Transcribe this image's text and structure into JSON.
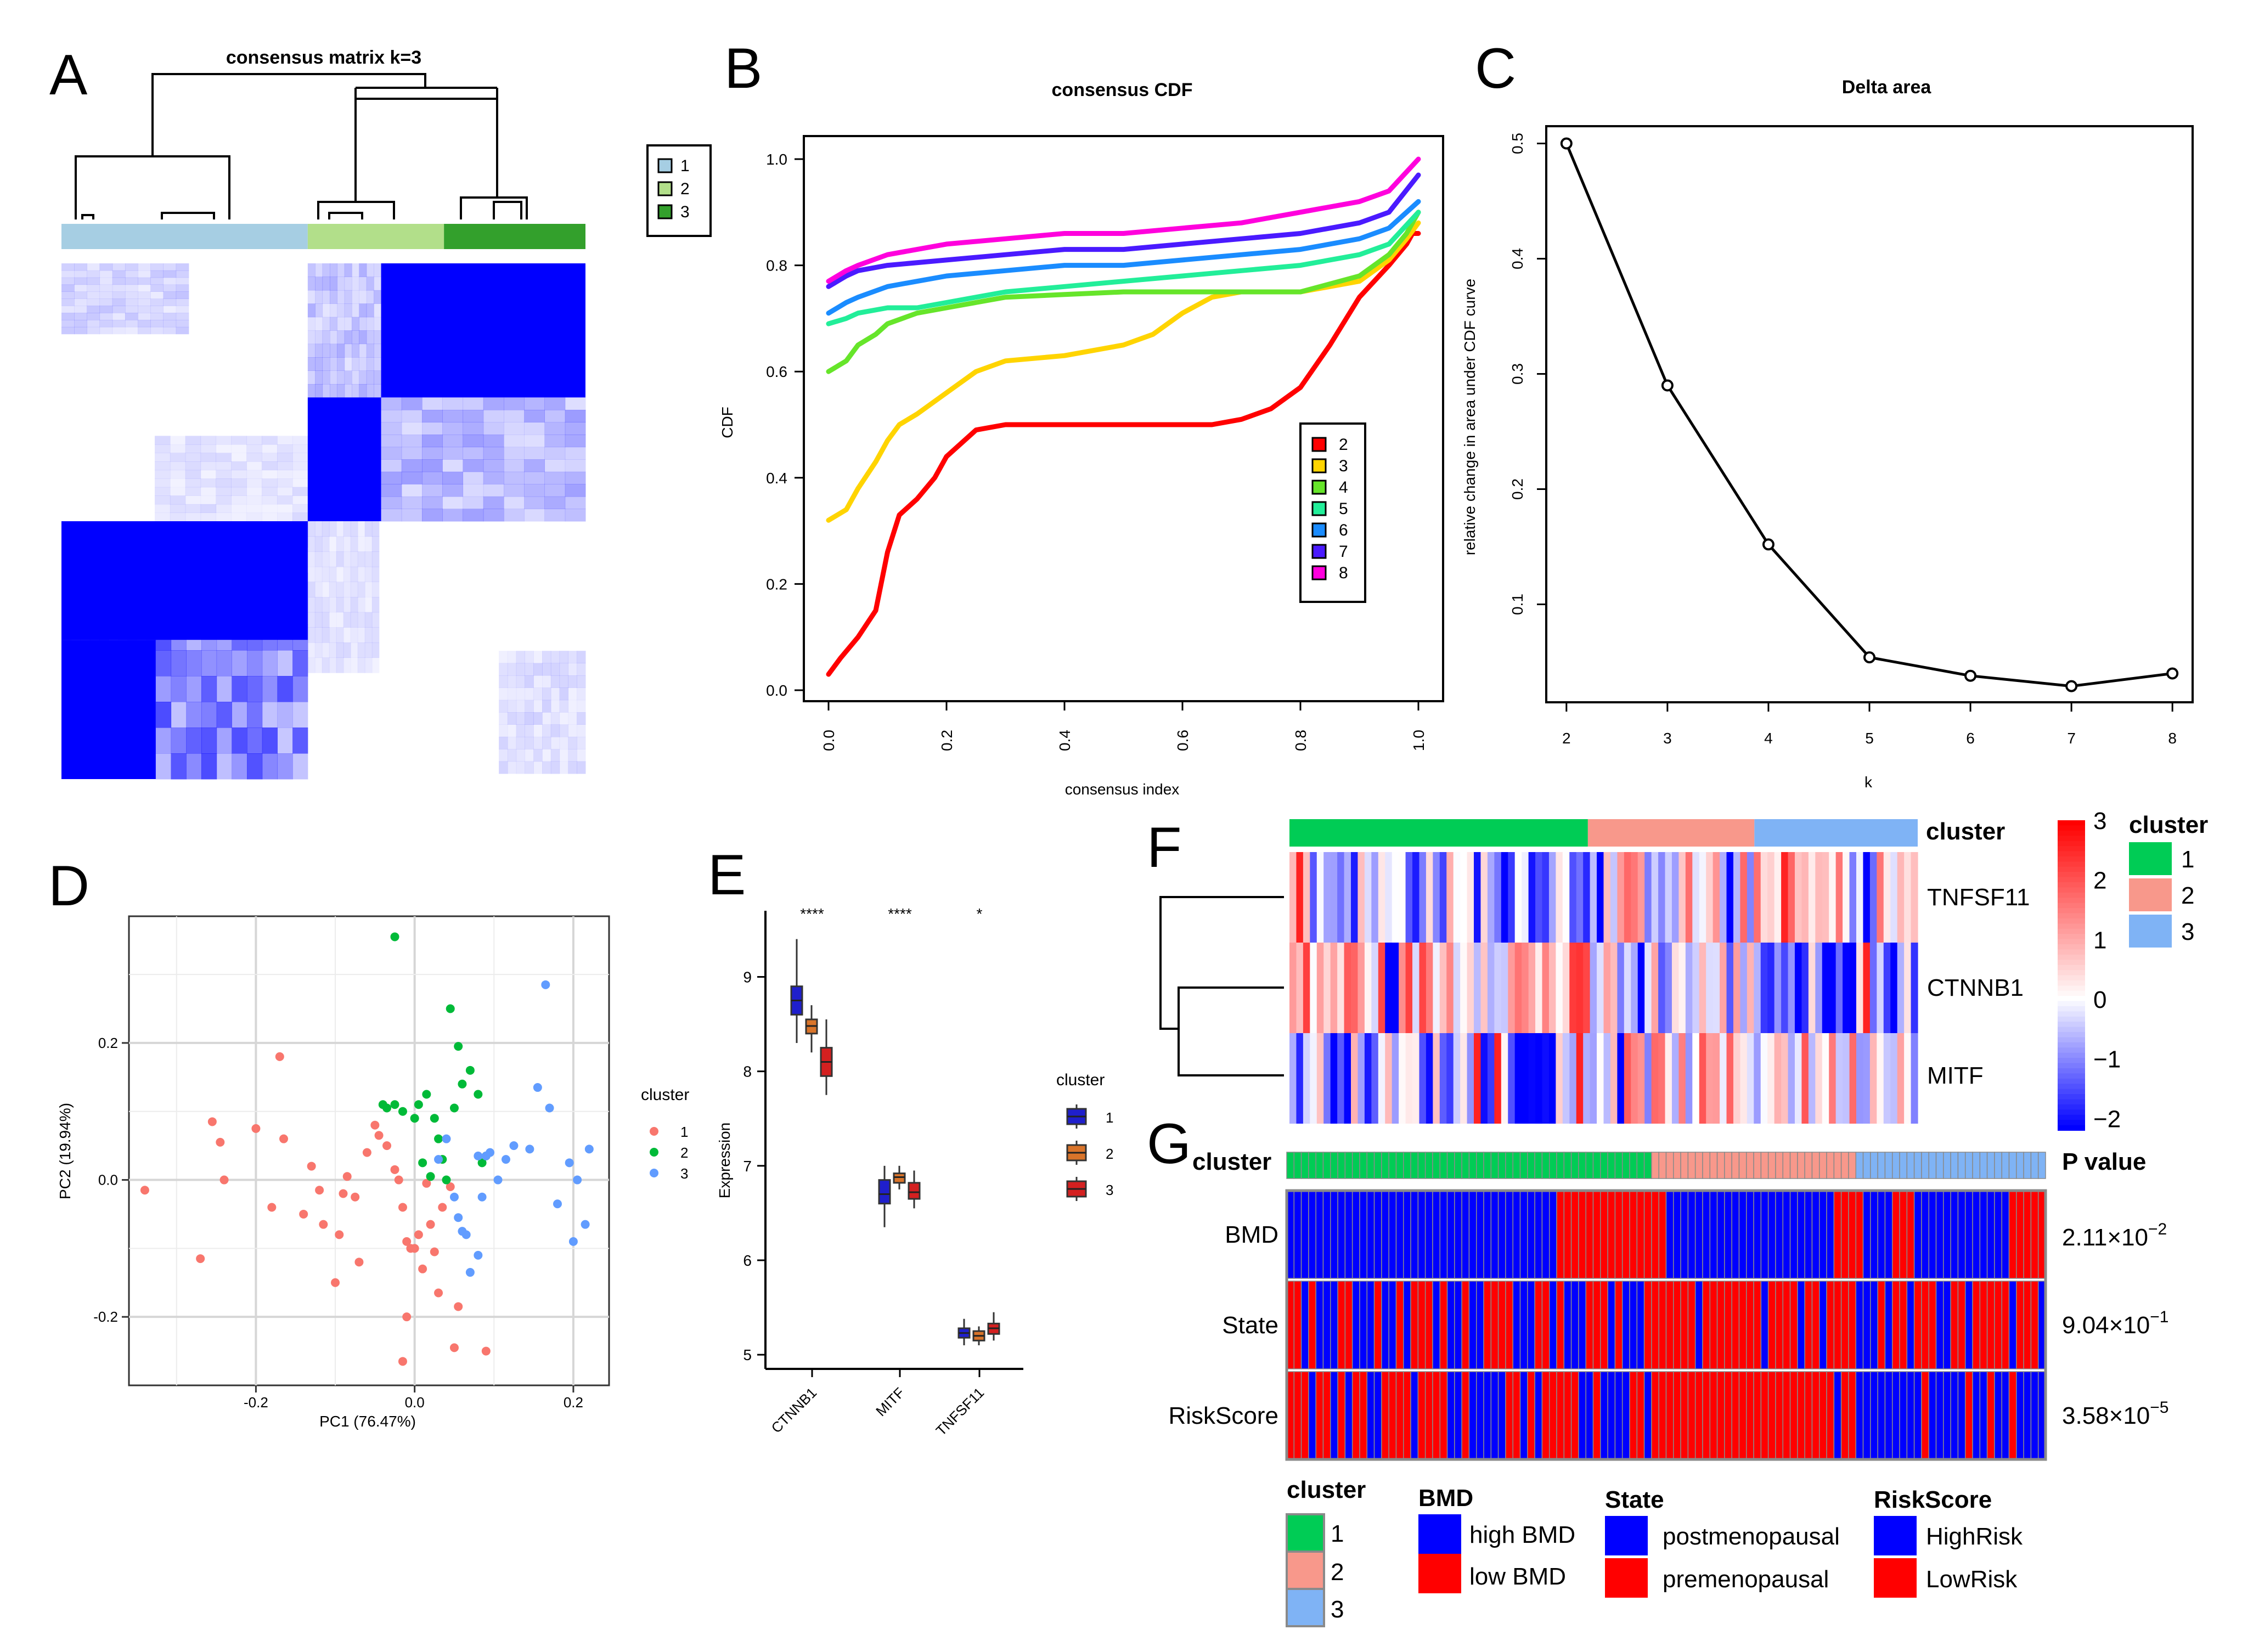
{
  "panel_letters": [
    "A",
    "B",
    "C",
    "D",
    "E",
    "F",
    "G"
  ],
  "colors": {
    "c1_light": "#a6cee3",
    "c2_light": "#b2df8a",
    "c3_light": "#33a02c",
    "cl1": "#00cc55",
    "cl2": "#f8988b",
    "cl3": "#7fb3f5",
    "blue": "#0000ff",
    "red": "#ff0000",
    "cdf": [
      "#ff0000",
      "#ffd400",
      "#66e52a",
      "#22ee99",
      "#1a8cff",
      "#4a1aff",
      "#ff00dd"
    ]
  },
  "chart_data": [
    {
      "panel": "A",
      "type": "heatmap",
      "title": "consensus matrix k=3",
      "legend": [
        "1",
        "2",
        "3"
      ],
      "groups": [
        {
          "name": "1",
          "size": 0.47
        },
        {
          "name": "2",
          "size": 0.26
        },
        {
          "name": "3",
          "size": 0.27
        }
      ]
    },
    {
      "panel": "B",
      "type": "line",
      "title": "consensus CDF",
      "xlabel": "consensus index",
      "ylabel": "CDF",
      "xlim": [
        0,
        1
      ],
      "ylim": [
        0,
        1
      ],
      "xticks": [
        "0.0",
        "0.2",
        "0.4",
        "0.6",
        "0.8",
        "1.0"
      ],
      "yticks": [
        "0.0",
        "0.2",
        "0.4",
        "0.6",
        "0.8",
        "1.0"
      ],
      "series": [
        {
          "name": "2",
          "x": [
            0,
            0.02,
            0.05,
            0.08,
            0.1,
            0.12,
            0.15,
            0.18,
            0.2,
            0.25,
            0.3,
            0.4,
            0.5,
            0.6,
            0.65,
            0.7,
            0.75,
            0.8,
            0.85,
            0.9,
            0.95,
            0.98,
            0.99,
            1.0
          ],
          "y": [
            0.03,
            0.06,
            0.1,
            0.15,
            0.26,
            0.33,
            0.36,
            0.4,
            0.44,
            0.49,
            0.5,
            0.5,
            0.5,
            0.5,
            0.5,
            0.51,
            0.53,
            0.57,
            0.65,
            0.74,
            0.8,
            0.84,
            0.86,
            0.86
          ]
        },
        {
          "name": "3",
          "x": [
            0,
            0.03,
            0.05,
            0.08,
            0.1,
            0.12,
            0.15,
            0.2,
            0.25,
            0.3,
            0.4,
            0.5,
            0.55,
            0.6,
            0.65,
            0.7,
            0.8,
            0.9,
            0.95,
            0.98,
            1.0
          ],
          "y": [
            0.32,
            0.34,
            0.38,
            0.43,
            0.47,
            0.5,
            0.52,
            0.56,
            0.6,
            0.62,
            0.63,
            0.65,
            0.67,
            0.71,
            0.74,
            0.75,
            0.75,
            0.77,
            0.81,
            0.85,
            0.88
          ]
        },
        {
          "name": "4",
          "x": [
            0,
            0.03,
            0.05,
            0.08,
            0.1,
            0.15,
            0.2,
            0.3,
            0.4,
            0.5,
            0.6,
            0.7,
            0.8,
            0.9,
            0.95,
            0.98,
            1.0
          ],
          "y": [
            0.6,
            0.62,
            0.65,
            0.67,
            0.69,
            0.71,
            0.72,
            0.74,
            0.745,
            0.75,
            0.75,
            0.75,
            0.75,
            0.78,
            0.82,
            0.86,
            0.9
          ]
        },
        {
          "name": "5",
          "x": [
            0,
            0.03,
            0.05,
            0.1,
            0.15,
            0.2,
            0.25,
            0.3,
            0.4,
            0.5,
            0.6,
            0.7,
            0.8,
            0.9,
            0.95,
            1.0
          ],
          "y": [
            0.69,
            0.7,
            0.71,
            0.72,
            0.72,
            0.73,
            0.74,
            0.75,
            0.76,
            0.77,
            0.78,
            0.79,
            0.8,
            0.82,
            0.84,
            0.9
          ]
        },
        {
          "name": "6",
          "x": [
            0,
            0.03,
            0.05,
            0.1,
            0.2,
            0.3,
            0.4,
            0.5,
            0.6,
            0.7,
            0.8,
            0.9,
            0.95,
            1.0
          ],
          "y": [
            0.71,
            0.73,
            0.74,
            0.76,
            0.78,
            0.79,
            0.8,
            0.8,
            0.81,
            0.82,
            0.83,
            0.85,
            0.87,
            0.92
          ]
        },
        {
          "name": "7",
          "x": [
            0,
            0.03,
            0.05,
            0.1,
            0.2,
            0.3,
            0.4,
            0.5,
            0.6,
            0.7,
            0.8,
            0.9,
            0.95,
            1.0
          ],
          "y": [
            0.76,
            0.78,
            0.79,
            0.8,
            0.81,
            0.82,
            0.83,
            0.83,
            0.84,
            0.85,
            0.86,
            0.88,
            0.9,
            0.97
          ]
        },
        {
          "name": "8",
          "x": [
            0,
            0.03,
            0.05,
            0.1,
            0.2,
            0.3,
            0.4,
            0.5,
            0.6,
            0.7,
            0.8,
            0.9,
            0.95,
            1.0
          ],
          "y": [
            0.77,
            0.79,
            0.8,
            0.82,
            0.84,
            0.85,
            0.86,
            0.86,
            0.87,
            0.88,
            0.9,
            0.92,
            0.94,
            1.0
          ]
        }
      ]
    },
    {
      "panel": "C",
      "type": "line",
      "title": "Delta area",
      "xlabel": "k",
      "ylabel": "relative change in area under CDF curve",
      "x": [
        2,
        3,
        4,
        5,
        6,
        7,
        8
      ],
      "y": [
        0.5,
        0.29,
        0.152,
        0.054,
        0.038,
        0.029,
        0.04
      ],
      "xlim": [
        1.8,
        8.2
      ],
      "ylim": [
        0.015,
        0.515
      ],
      "xticks": [
        "2",
        "3",
        "4",
        "5",
        "6",
        "7",
        "8"
      ],
      "yticks": [
        "0.1",
        "0.2",
        "0.3",
        "0.4",
        "0.5"
      ]
    },
    {
      "panel": "D",
      "type": "scatter",
      "xlabel": "PC1 (76.47%)",
      "ylabel": "PC2 (19.94%)",
      "xlim": [
        -0.36,
        0.245
      ],
      "ylim": [
        -0.3,
        0.385
      ],
      "xticks": [
        "-0.2",
        "0.0",
        "0.2"
      ],
      "yticks": [
        "-0.2",
        "0.0",
        "0.2"
      ],
      "legend_title": "cluster",
      "legend": [
        "1",
        "2",
        "3"
      ],
      "series": [
        {
          "name": "1",
          "points": [
            [
              -0.34,
              -0.015
            ],
            [
              -0.27,
              -0.115
            ],
            [
              -0.255,
              0.085
            ],
            [
              -0.245,
              0.055
            ],
            [
              -0.24,
              0.0
            ],
            [
              -0.2,
              0.075
            ],
            [
              -0.18,
              -0.04
            ],
            [
              -0.17,
              0.18
            ],
            [
              -0.165,
              0.06
            ],
            [
              -0.14,
              -0.05
            ],
            [
              -0.13,
              0.02
            ],
            [
              -0.12,
              -0.015
            ],
            [
              -0.115,
              -0.065
            ],
            [
              -0.1,
              -0.15
            ],
            [
              -0.095,
              -0.08
            ],
            [
              -0.09,
              -0.02
            ],
            [
              -0.085,
              0.005
            ],
            [
              -0.075,
              -0.025
            ],
            [
              -0.07,
              -0.12
            ],
            [
              -0.06,
              0.04
            ],
            [
              -0.05,
              0.08
            ],
            [
              -0.045,
              0.065
            ],
            [
              -0.035,
              0.05
            ],
            [
              -0.025,
              0.015
            ],
            [
              -0.02,
              0.0
            ],
            [
              -0.015,
              -0.04
            ],
            [
              -0.01,
              -0.09
            ],
            [
              -0.005,
              -0.1
            ],
            [
              -0.01,
              -0.2
            ],
            [
              -0.015,
              -0.265
            ],
            [
              0.0,
              -0.1
            ],
            [
              0.005,
              -0.08
            ],
            [
              0.01,
              -0.13
            ],
            [
              0.015,
              -0.005
            ],
            [
              0.02,
              -0.065
            ],
            [
              0.025,
              -0.105
            ],
            [
              0.03,
              -0.165
            ],
            [
              0.035,
              -0.04
            ],
            [
              0.045,
              -0.01
            ],
            [
              0.05,
              -0.245
            ],
            [
              0.055,
              -0.185
            ],
            [
              0.09,
              -0.25
            ]
          ]
        },
        {
          "name": "2",
          "points": [
            [
              -0.025,
              0.355
            ],
            [
              -0.04,
              0.11
            ],
            [
              -0.035,
              0.105
            ],
            [
              -0.025,
              0.11
            ],
            [
              -0.015,
              0.1
            ],
            [
              0.0,
              0.09
            ],
            [
              0.005,
              0.11
            ],
            [
              0.01,
              0.025
            ],
            [
              0.015,
              0.125
            ],
            [
              0.02,
              0.005
            ],
            [
              0.025,
              0.09
            ],
            [
              0.03,
              0.06
            ],
            [
              0.035,
              0.03
            ],
            [
              0.04,
              0.0
            ],
            [
              0.045,
              0.25
            ],
            [
              0.05,
              0.105
            ],
            [
              0.055,
              0.195
            ],
            [
              0.06,
              0.14
            ],
            [
              0.07,
              0.16
            ],
            [
              0.08,
              0.125
            ],
            [
              0.085,
              0.025
            ],
            [
              0.09,
              0.035
            ]
          ]
        },
        {
          "name": "3",
          "points": [
            [
              0.03,
              0.03
            ],
            [
              0.04,
              0.06
            ],
            [
              0.05,
              -0.025
            ],
            [
              0.055,
              -0.055
            ],
            [
              0.06,
              -0.075
            ],
            [
              0.065,
              -0.08
            ],
            [
              0.07,
              -0.135
            ],
            [
              0.08,
              0.035
            ],
            [
              0.08,
              -0.11
            ],
            [
              0.085,
              -0.025
            ],
            [
              0.09,
              0.035
            ],
            [
              0.095,
              0.04
            ],
            [
              0.105,
              0.0
            ],
            [
              0.115,
              0.03
            ],
            [
              0.125,
              0.05
            ],
            [
              0.145,
              0.045
            ],
            [
              0.155,
              0.135
            ],
            [
              0.165,
              0.285
            ],
            [
              0.17,
              0.105
            ],
            [
              0.18,
              -0.035
            ],
            [
              0.195,
              0.025
            ],
            [
              0.2,
              -0.09
            ],
            [
              0.205,
              0.0
            ],
            [
              0.215,
              -0.065
            ],
            [
              0.22,
              0.045
            ]
          ]
        }
      ]
    },
    {
      "panel": "E",
      "type": "boxplot",
      "ylabel": "Expression",
      "categories": [
        "CTNNB1",
        "MITF",
        "TNFSF11"
      ],
      "significance": [
        "****",
        "****",
        "*"
      ],
      "legend_title": "cluster",
      "legend": [
        "1",
        "2",
        "3"
      ],
      "ylim": [
        4.85,
        9.7
      ],
      "yticks": [
        "5",
        "6",
        "7",
        "8",
        "9"
      ],
      "boxes": [
        [
          [
            8.3,
            8.6,
            8.75,
            8.9,
            9.4
          ],
          [
            8.2,
            8.4,
            8.48,
            8.55,
            8.7
          ],
          [
            7.75,
            7.95,
            8.1,
            8.25,
            8.55
          ]
        ],
        [
          [
            6.35,
            6.6,
            6.7,
            6.85,
            7.0
          ],
          [
            6.75,
            6.82,
            6.88,
            6.92,
            7.0
          ],
          [
            6.55,
            6.65,
            6.72,
            6.82,
            6.95
          ]
        ],
        [
          [
            5.1,
            5.18,
            5.23,
            5.28,
            5.38
          ],
          [
            5.1,
            5.15,
            5.2,
            5.25,
            5.3
          ],
          [
            5.15,
            5.22,
            5.28,
            5.33,
            5.45
          ]
        ]
      ]
    },
    {
      "panel": "F",
      "type": "heatmap",
      "rows": [
        "TNFSF11",
        "CTNNB1",
        "MITF"
      ],
      "annotation_label": "cluster",
      "scale_ticks": [
        "3",
        "2",
        "1",
        "0",
        "−1",
        "−2"
      ],
      "legend_title": "cluster",
      "legend": [
        "1",
        "2",
        "3"
      ],
      "cluster_sizes": [
        0.475,
        0.265,
        0.26
      ]
    },
    {
      "panel": "G",
      "type": "heatmap",
      "annotation_label": "cluster",
      "rows": [
        "BMD",
        "State",
        "RiskScore"
      ],
      "pvalue_header": "P value",
      "pvalues": [
        {
          "base": "2.11×10",
          "exp": "−2"
        },
        {
          "base": "9.04×10",
          "exp": "−1"
        },
        {
          "base": "3.58×10",
          "exp": "−5"
        }
      ],
      "cluster_sizes": [
        0.48,
        0.27,
        0.25
      ],
      "legends": {
        "cluster": {
          "title": "cluster",
          "items": [
            "1",
            "2",
            "3"
          ]
        },
        "BMD": {
          "title": "BMD",
          "items": [
            "high BMD",
            "low BMD"
          ]
        },
        "State": {
          "title": "State",
          "items": [
            "postmenopausal",
            "premenopausal"
          ]
        },
        "RiskScore": {
          "title": "RiskScore",
          "items": [
            "HighRisk",
            "LowRisk"
          ]
        }
      }
    }
  ]
}
